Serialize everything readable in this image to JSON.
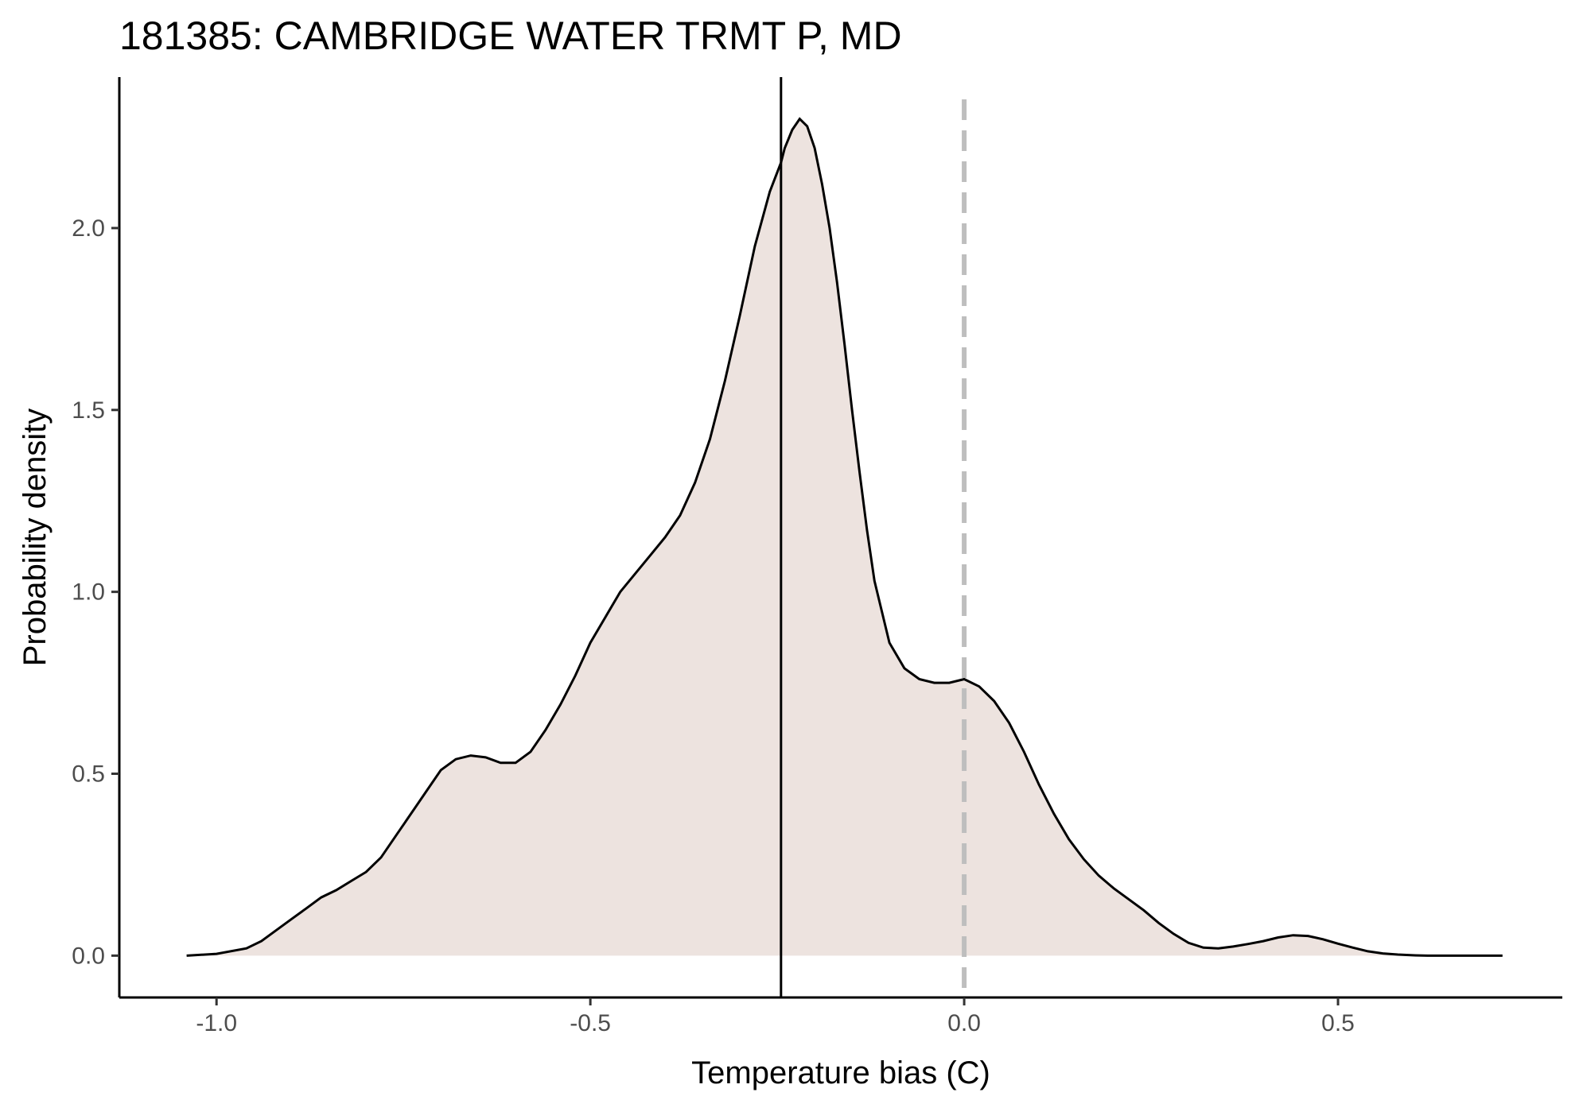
{
  "chart_data": {
    "type": "area",
    "title": "181385: CAMBRIDGE WATER TRMT P, MD",
    "xlabel": "Temperature bias (C)",
    "ylabel": "Probability density",
    "xlim": [
      -1.13,
      0.8
    ],
    "ylim": [
      -0.115,
      2.415
    ],
    "x_ticks": [
      -1.0,
      -0.5,
      0.0,
      0.5
    ],
    "x_tick_labels": [
      "-1.0",
      "-0.5",
      "0.0",
      "0.5"
    ],
    "y_ticks": [
      0.0,
      0.5,
      1.0,
      1.5,
      2.0
    ],
    "y_tick_labels": [
      "0.0",
      "0.5",
      "1.0",
      "1.5",
      "2.0"
    ],
    "grid": false,
    "fill_color": "#ede3df",
    "line_color": "#000000",
    "reference_lines": [
      {
        "x": -0.245,
        "style": "solid",
        "color": "#000000"
      },
      {
        "x": 0.0,
        "style": "dashed",
        "color": "#bebebe"
      }
    ],
    "x": [
      -1.04,
      -1.0,
      -0.96,
      -0.94,
      -0.92,
      -0.9,
      -0.88,
      -0.86,
      -0.84,
      -0.82,
      -0.8,
      -0.78,
      -0.76,
      -0.74,
      -0.72,
      -0.7,
      -0.68,
      -0.66,
      -0.64,
      -0.62,
      -0.6,
      -0.58,
      -0.56,
      -0.54,
      -0.52,
      -0.5,
      -0.48,
      -0.46,
      -0.44,
      -0.42,
      -0.4,
      -0.38,
      -0.36,
      -0.34,
      -0.32,
      -0.3,
      -0.28,
      -0.26,
      -0.245,
      -0.24,
      -0.23,
      -0.22,
      -0.21,
      -0.2,
      -0.19,
      -0.18,
      -0.17,
      -0.16,
      -0.15,
      -0.14,
      -0.13,
      -0.12,
      -0.1,
      -0.08,
      -0.06,
      -0.04,
      -0.02,
      0.0,
      0.02,
      0.04,
      0.06,
      0.08,
      0.1,
      0.12,
      0.14,
      0.16,
      0.18,
      0.2,
      0.22,
      0.24,
      0.26,
      0.28,
      0.3,
      0.32,
      0.34,
      0.36,
      0.38,
      0.4,
      0.42,
      0.44,
      0.46,
      0.48,
      0.5,
      0.52,
      0.54,
      0.56,
      0.58,
      0.6,
      0.62,
      0.64,
      0.66,
      0.68,
      0.72
    ],
    "y": [
      0.0,
      0.005,
      0.02,
      0.04,
      0.07,
      0.1,
      0.13,
      0.16,
      0.18,
      0.205,
      0.23,
      0.27,
      0.33,
      0.39,
      0.45,
      0.51,
      0.54,
      0.55,
      0.545,
      0.53,
      0.53,
      0.56,
      0.62,
      0.69,
      0.77,
      0.86,
      0.93,
      1.0,
      1.05,
      1.1,
      1.15,
      1.21,
      1.3,
      1.42,
      1.58,
      1.76,
      1.95,
      2.1,
      2.18,
      2.22,
      2.27,
      2.3,
      2.28,
      2.22,
      2.12,
      2.0,
      1.85,
      1.68,
      1.5,
      1.33,
      1.17,
      1.03,
      0.86,
      0.79,
      0.76,
      0.75,
      0.75,
      0.76,
      0.74,
      0.7,
      0.64,
      0.56,
      0.47,
      0.39,
      0.32,
      0.265,
      0.22,
      0.185,
      0.155,
      0.125,
      0.09,
      0.06,
      0.035,
      0.022,
      0.02,
      0.025,
      0.032,
      0.04,
      0.05,
      0.056,
      0.054,
      0.045,
      0.033,
      0.022,
      0.012,
      0.006,
      0.003,
      0.001,
      0.0,
      0.0,
      0.0,
      0.0,
      0.0
    ]
  }
}
